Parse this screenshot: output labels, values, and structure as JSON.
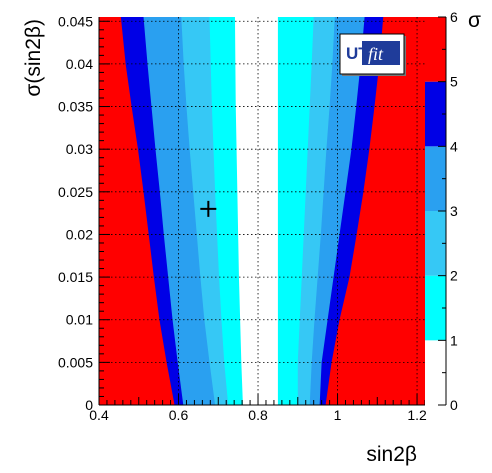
{
  "chart_data": {
    "type": "heatmap",
    "xlabel": "sin2β",
    "ylabel": "σ(sin2β)",
    "colorbar_label": "σ",
    "xlim": [
      0.4,
      1.22
    ],
    "ylim": [
      0,
      0.0455
    ],
    "x_ticks": [
      {
        "value": 0.4,
        "label": "0.4"
      },
      {
        "value": 0.6,
        "label": "0.6"
      },
      {
        "value": 0.8,
        "label": "0.8"
      },
      {
        "value": 1.0,
        "label": "1"
      },
      {
        "value": 1.2,
        "label": "1.2"
      }
    ],
    "y_ticks": [
      {
        "value": 0,
        "label": "0"
      },
      {
        "value": 0.005,
        "label": "0.005"
      },
      {
        "value": 0.01,
        "label": "0.01"
      },
      {
        "value": 0.015,
        "label": "0.015"
      },
      {
        "value": 0.02,
        "label": "0.02"
      },
      {
        "value": 0.025,
        "label": "0.025"
      },
      {
        "value": 0.03,
        "label": "0.03"
      },
      {
        "value": 0.035,
        "label": "0.035"
      },
      {
        "value": 0.04,
        "label": "0.04"
      },
      {
        "value": 0.045,
        "label": "0.045"
      }
    ],
    "colorbar": {
      "range": [
        0,
        6
      ],
      "ticks": [
        "0",
        "1",
        "2",
        "3",
        "4",
        "5",
        "6"
      ],
      "bands": [
        {
          "from": 0,
          "to": 1,
          "color": "#ffffff"
        },
        {
          "from": 1,
          "to": 2,
          "color": "#00ffff"
        },
        {
          "from": 2,
          "to": 3,
          "color": "#36c8f5"
        },
        {
          "from": 3,
          "to": 4,
          "color": "#2aa0f0"
        },
        {
          "from": 4,
          "to": 5,
          "color": "#0000e6"
        },
        {
          "from": 5,
          "to": 6,
          "color": "#ff0000"
        }
      ]
    },
    "background_color": "#ff0000",
    "contour_boundaries": [
      {
        "level": 5,
        "color": "#0000e6",
        "left": [
          [
            0.0,
            0.59
          ],
          [
            0.005,
            0.57
          ],
          [
            0.01,
            0.552
          ],
          [
            0.015,
            0.538
          ],
          [
            0.02,
            0.525
          ],
          [
            0.025,
            0.512
          ],
          [
            0.03,
            0.498
          ],
          [
            0.035,
            0.482
          ],
          [
            0.04,
            0.467
          ],
          [
            0.0455,
            0.455
          ]
        ],
        "right": [
          [
            0.0,
            0.97
          ],
          [
            0.005,
            0.985
          ],
          [
            0.01,
            1.005
          ],
          [
            0.015,
            1.03
          ],
          [
            0.02,
            1.048
          ],
          [
            0.025,
            1.065
          ],
          [
            0.03,
            1.08
          ],
          [
            0.035,
            1.093
          ],
          [
            0.04,
            1.105
          ],
          [
            0.0455,
            1.115
          ]
        ]
      },
      {
        "level": 4,
        "color": "#2aa0f0",
        "left": [
          [
            0.0,
            0.612
          ],
          [
            0.005,
            0.598
          ],
          [
            0.01,
            0.585
          ],
          [
            0.015,
            0.574
          ],
          [
            0.02,
            0.563
          ],
          [
            0.025,
            0.553
          ],
          [
            0.03,
            0.542
          ],
          [
            0.035,
            0.532
          ],
          [
            0.04,
            0.522
          ],
          [
            0.0455,
            0.512
          ]
        ],
        "right": [
          [
            0.0,
            0.955
          ],
          [
            0.005,
            0.96
          ],
          [
            0.01,
            0.975
          ],
          [
            0.015,
            0.99
          ],
          [
            0.02,
            1.005
          ],
          [
            0.025,
            1.02
          ],
          [
            0.03,
            1.035
          ],
          [
            0.035,
            1.047
          ],
          [
            0.04,
            1.058
          ],
          [
            0.0455,
            1.068
          ]
        ]
      },
      {
        "level": 3,
        "color": "#36c8f5",
        "left": [
          [
            0.0,
            0.692
          ],
          [
            0.005,
            0.678
          ],
          [
            0.01,
            0.665
          ],
          [
            0.015,
            0.655
          ],
          [
            0.02,
            0.646
          ],
          [
            0.025,
            0.637
          ],
          [
            0.03,
            0.628
          ],
          [
            0.035,
            0.62
          ],
          [
            0.04,
            0.613
          ],
          [
            0.0455,
            0.607
          ]
        ],
        "right": [
          [
            0.0,
            0.93
          ],
          [
            0.005,
            0.935
          ],
          [
            0.01,
            0.942
          ],
          [
            0.015,
            0.95
          ],
          [
            0.02,
            0.958
          ],
          [
            0.025,
            0.965
          ],
          [
            0.03,
            0.972
          ],
          [
            0.035,
            0.98
          ],
          [
            0.04,
            0.987
          ],
          [
            0.0455,
            0.993
          ]
        ]
      },
      {
        "level": 2,
        "color": "#00ffff",
        "left": [
          [
            0.0,
            0.725
          ],
          [
            0.005,
            0.715
          ],
          [
            0.01,
            0.708
          ],
          [
            0.015,
            0.702
          ],
          [
            0.02,
            0.697
          ],
          [
            0.025,
            0.692
          ],
          [
            0.03,
            0.688
          ],
          [
            0.035,
            0.684
          ],
          [
            0.04,
            0.681
          ],
          [
            0.0455,
            0.678
          ]
        ],
        "right": [
          [
            0.0,
            0.9
          ],
          [
            0.005,
            0.9
          ],
          [
            0.01,
            0.905
          ],
          [
            0.015,
            0.91
          ],
          [
            0.02,
            0.915
          ],
          [
            0.025,
            0.92
          ],
          [
            0.03,
            0.925
          ],
          [
            0.035,
            0.93
          ],
          [
            0.04,
            0.935
          ],
          [
            0.0455,
            0.94
          ]
        ]
      },
      {
        "level": 1,
        "color": "#ffffff",
        "left": [
          [
            0.0,
            0.762
          ],
          [
            0.005,
            0.758
          ],
          [
            0.01,
            0.755
          ],
          [
            0.015,
            0.752
          ],
          [
            0.02,
            0.75
          ],
          [
            0.025,
            0.748
          ],
          [
            0.03,
            0.746
          ],
          [
            0.035,
            0.744
          ],
          [
            0.04,
            0.743
          ],
          [
            0.0455,
            0.742
          ]
        ],
        "right": [
          [
            0.0,
            0.85
          ],
          [
            0.005,
            0.85
          ],
          [
            0.01,
            0.85
          ],
          [
            0.015,
            0.85
          ],
          [
            0.02,
            0.85
          ],
          [
            0.025,
            0.85
          ],
          [
            0.03,
            0.85
          ],
          [
            0.035,
            0.85
          ],
          [
            0.04,
            0.85
          ],
          [
            0.0455,
            0.85
          ]
        ]
      }
    ],
    "marker": {
      "x": 0.675,
      "y": 0.023,
      "symbol": "+"
    },
    "grid": true,
    "logo": {
      "text_main": "UT",
      "text_sub": "fit",
      "placement": "top-right"
    }
  }
}
